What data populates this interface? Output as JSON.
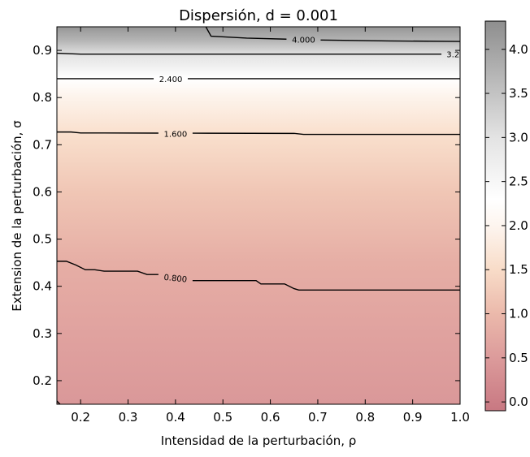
{
  "chart_data": {
    "type": "heatmap",
    "title": "Dispersión, d = 0.001",
    "xlabel": "Intensidad de la perturbación, ρ",
    "ylabel": "Extension de la perturbación, σ",
    "xlim": [
      0.15,
      1.0
    ],
    "ylim": [
      0.15,
      0.95
    ],
    "x_ticks": [
      "0.2",
      "0.3",
      "0.4",
      "0.5",
      "0.6",
      "0.7",
      "0.8",
      "0.9",
      "1.0"
    ],
    "x_tick_values": [
      0.2,
      0.3,
      0.4,
      0.5,
      0.6,
      0.7,
      0.8,
      0.9,
      1.0
    ],
    "y_ticks": [
      "0.2",
      "0.3",
      "0.4",
      "0.5",
      "0.6",
      "0.7",
      "0.8",
      "0.9"
    ],
    "y_tick_values": [
      0.2,
      0.3,
      0.4,
      0.5,
      0.6,
      0.7,
      0.8,
      0.9
    ],
    "colorbar": {
      "min": -0.1,
      "max": 4.32,
      "ticks": [
        "0.0",
        "0.5",
        "1.0",
        "1.5",
        "2.0",
        "2.5",
        "3.0",
        "3.5",
        "4.0"
      ],
      "tick_values": [
        0.0,
        0.5,
        1.0,
        1.5,
        2.0,
        2.5,
        3.0,
        3.5,
        4.0
      ],
      "colormap_stops": [
        {
          "value": -0.1,
          "color": "#c87882"
        },
        {
          "value": 0.5,
          "color": "#dc9b9b"
        },
        {
          "value": 1.0,
          "color": "#ebb9ab"
        },
        {
          "value": 1.5,
          "color": "#f8dcc8"
        },
        {
          "value": 2.0,
          "color": "#fdf5ef"
        },
        {
          "value": 2.3,
          "color": "#ffffff"
        },
        {
          "value": 3.0,
          "color": "#e3e3e3"
        },
        {
          "value": 3.5,
          "color": "#c3c3c3"
        },
        {
          "value": 4.32,
          "color": "#8e8e8e"
        }
      ]
    },
    "heat_profile": [
      {
        "sigma": 0.15,
        "value": 0.45
      },
      {
        "sigma": 0.3,
        "value": 0.62
      },
      {
        "sigma": 0.45,
        "value": 0.82
      },
      {
        "sigma": 0.6,
        "value": 1.18
      },
      {
        "sigma": 0.72,
        "value": 1.55
      },
      {
        "sigma": 0.8,
        "value": 1.95
      },
      {
        "sigma": 0.84,
        "value": 2.3
      },
      {
        "sigma": 0.89,
        "value": 3.0
      },
      {
        "sigma": 0.92,
        "value": 3.7
      },
      {
        "sigma": 0.95,
        "value": 4.2
      }
    ],
    "contours": [
      {
        "level": "0.800",
        "points": [
          [
            0.15,
            0.453
          ],
          [
            0.17,
            0.453
          ],
          [
            0.19,
            0.445
          ],
          [
            0.21,
            0.435
          ],
          [
            0.23,
            0.435
          ],
          [
            0.25,
            0.432
          ],
          [
            0.32,
            0.432
          ],
          [
            0.34,
            0.425
          ],
          [
            0.38,
            0.425
          ],
          [
            0.4,
            0.412
          ],
          [
            0.57,
            0.412
          ],
          [
            0.58,
            0.405
          ],
          [
            0.63,
            0.405
          ],
          [
            0.65,
            0.395
          ],
          [
            0.66,
            0.392
          ],
          [
            1.0,
            0.392
          ]
        ],
        "label_at": [
          0.4,
          0.418
        ]
      },
      {
        "level": "1.600",
        "points": [
          [
            0.15,
            0.727
          ],
          [
            0.18,
            0.727
          ],
          [
            0.2,
            0.725
          ],
          [
            0.65,
            0.724
          ],
          [
            0.67,
            0.722
          ],
          [
            1.0,
            0.722
          ]
        ],
        "label_at": [
          0.4,
          0.724
        ]
      },
      {
        "level": "2.400",
        "points": [
          [
            0.15,
            0.84
          ],
          [
            1.0,
            0.84
          ]
        ],
        "label_at": [
          0.39,
          0.84
        ]
      },
      {
        "level": "3.2",
        "points": [
          [
            0.15,
            0.894
          ],
          [
            0.2,
            0.892
          ],
          [
            1.0,
            0.892
          ]
        ],
        "label_at": [
          0.985,
          0.892
        ]
      },
      {
        "level": "4.000",
        "points": [
          [
            0.464,
            0.95
          ],
          [
            0.475,
            0.93
          ],
          [
            0.55,
            0.926
          ],
          [
            0.7,
            0.922
          ],
          [
            0.85,
            0.92
          ],
          [
            1.0,
            0.919
          ]
        ],
        "label_at": [
          0.67,
          0.923
        ]
      },
      {
        "level": "",
        "points": [
          [
            0.15,
            0.157
          ],
          [
            0.163,
            0.143
          ]
        ],
        "label_at": null
      }
    ]
  }
}
